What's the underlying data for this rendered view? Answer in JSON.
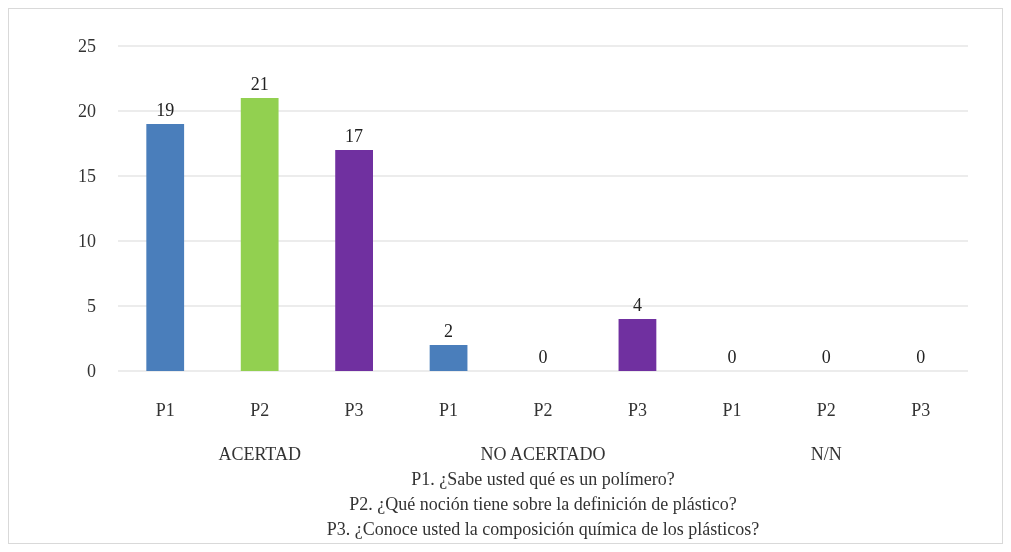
{
  "chart_data": {
    "type": "bar",
    "categories": [
      "P1",
      "P2",
      "P3",
      "P1",
      "P2",
      "P3",
      "P1",
      "P2",
      "P3"
    ],
    "values": [
      19,
      21,
      17,
      2,
      0,
      4,
      0,
      0,
      0
    ],
    "colors": [
      "#4a7ebb",
      "#92d050",
      "#7030a0",
      "#4a7ebb",
      "#92d050",
      "#7030a0",
      "#4a7ebb",
      "#92d050",
      "#4a7ebb"
    ],
    "ylim": [
      0,
      25
    ],
    "yticks": [
      0,
      5,
      10,
      15,
      20,
      25
    ],
    "grid": "y",
    "data_labels": true,
    "annotations": [
      "ACERTAD",
      "NO ACERTADO",
      "N/N",
      "P1. ¿Sabe usted qué es un polímero?",
      "P2. ¿Qué noción tiene sobre la definición de plástico?",
      "P3. ¿Conoce usted la composición química de los plásticos?"
    ]
  }
}
